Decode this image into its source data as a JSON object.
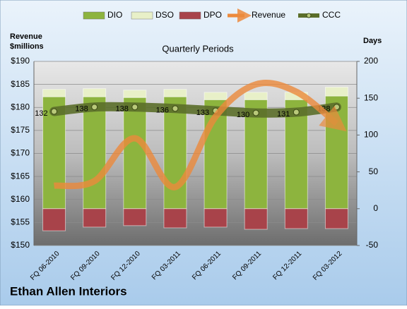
{
  "chart_data": {
    "type": "combo",
    "title": "Ethan Allen Interiors",
    "subtitle": "Quarterly Periods",
    "y_label": [
      "Revenue",
      "$millions"
    ],
    "y2_label": "Days",
    "categories": [
      "FQ 06-2010",
      "FQ 09-2010",
      "FQ 12-2010",
      "FQ 03-2011",
      "FQ 06-2011",
      "FQ 09-2011",
      "FQ 12-2011",
      "FQ 03-2012"
    ],
    "ylim": [
      150,
      190
    ],
    "yticks": [
      {
        "value": 150,
        "label": "$150"
      },
      {
        "value": 155,
        "label": "$155"
      },
      {
        "value": 160,
        "label": "$160"
      },
      {
        "value": 165,
        "label": "$165"
      },
      {
        "value": 170,
        "label": "$170"
      },
      {
        "value": 175,
        "label": "$175"
      },
      {
        "value": 180,
        "label": "$180"
      },
      {
        "value": 185,
        "label": "$185"
      },
      {
        "value": 190,
        "label": "$190"
      }
    ],
    "y2lim": [
      -50,
      200
    ],
    "y2ticks": [
      -50,
      0,
      50,
      100,
      150,
      200
    ],
    "grid": true,
    "series": [
      {
        "name": "DIO",
        "type": "bar",
        "axis": "y2",
        "color": "#8db43e",
        "values": [
          152,
          152,
          151,
          152,
          148,
          148,
          148,
          153
        ]
      },
      {
        "name": "DSO",
        "type": "bar",
        "axis": "y2",
        "color": "#e8f0c8",
        "values": [
          10,
          11,
          10,
          10,
          10,
          10,
          10,
          12
        ]
      },
      {
        "name": "DPO",
        "type": "bar",
        "axis": "y2",
        "color": "#a8434a",
        "values": [
          -30,
          -25,
          -23,
          -26,
          -25,
          -28,
          -27,
          -27
        ]
      },
      {
        "name": "Revenue",
        "type": "line",
        "axis": "y",
        "color": "#ec8a3c",
        "values": [
          163,
          164,
          173.3,
          162.7,
          178,
          185,
          183.4,
          176.5
        ]
      },
      {
        "name": "CCC",
        "type": "line",
        "axis": "y2",
        "color": "#5b6e2a",
        "values": [
          132,
          138,
          138,
          136,
          133,
          130,
          131,
          138
        ]
      }
    ]
  }
}
